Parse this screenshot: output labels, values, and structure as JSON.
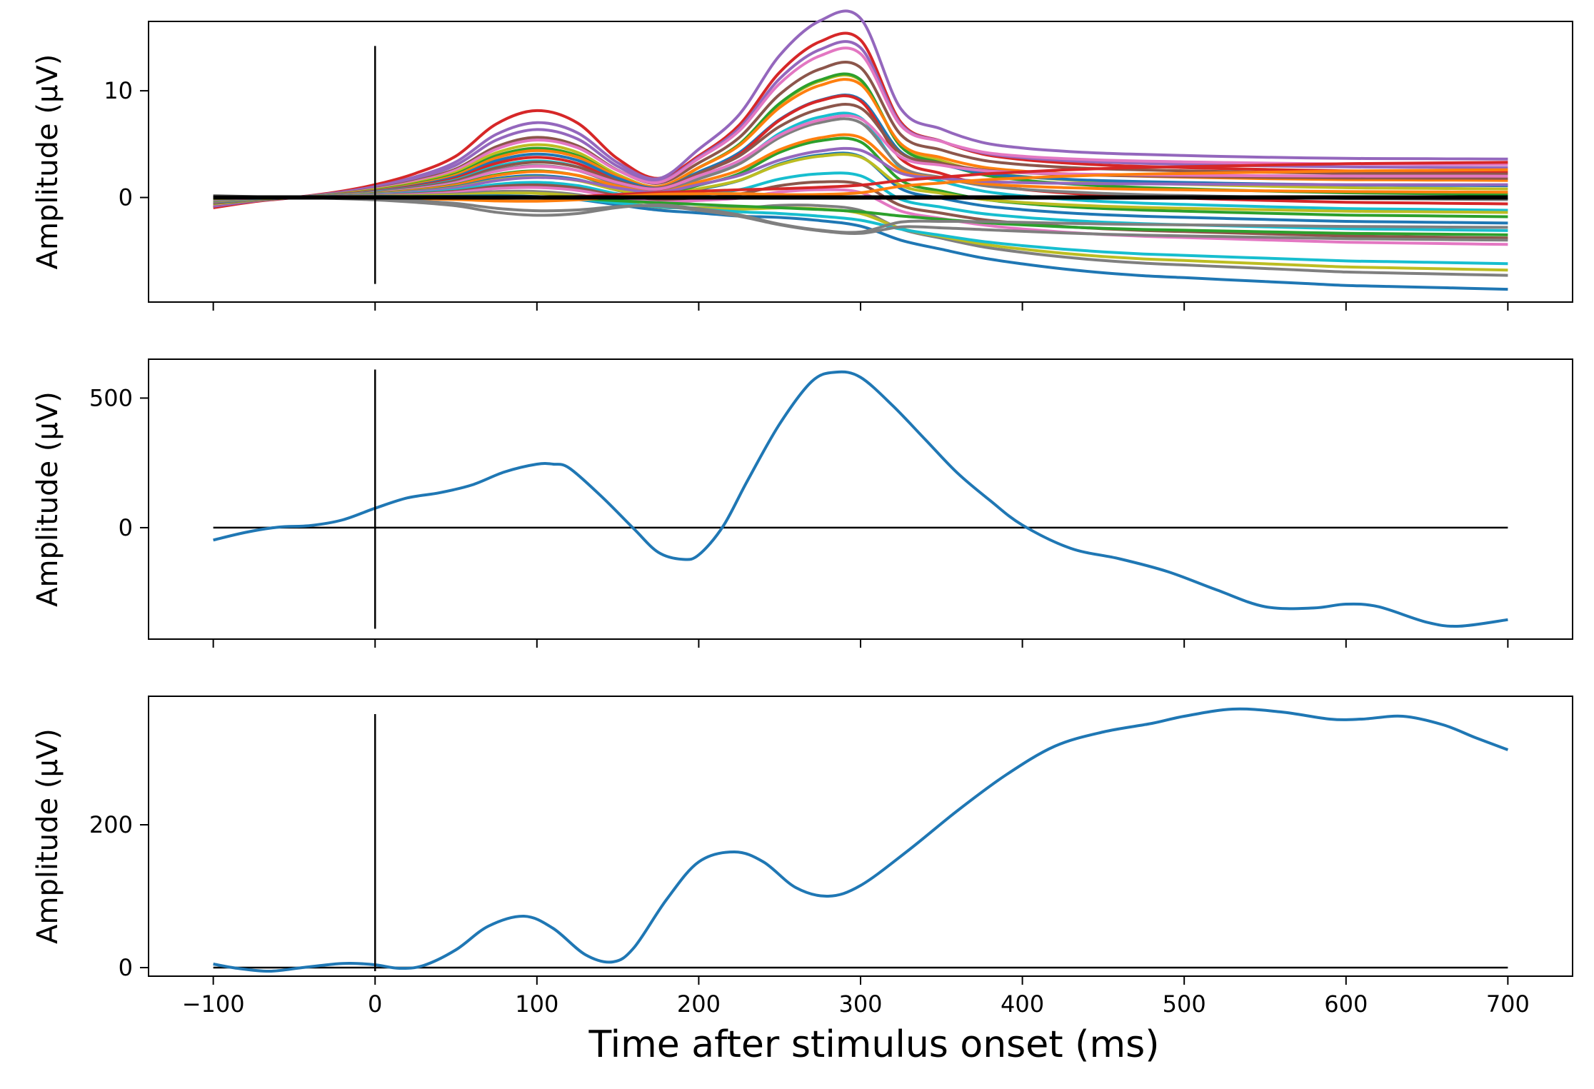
{
  "figure": {
    "xlabel": "Time after stimulus onset (ms)"
  },
  "chart_data": [
    {
      "type": "line",
      "panel": "top",
      "ylabel": "Amplitude (μV)",
      "xlim": [
        -140,
        740
      ],
      "ylim": [
        -9.8,
        16.5
      ],
      "xticks": [
        -100,
        0,
        100,
        200,
        300,
        400,
        500,
        600,
        700
      ],
      "xticklabels": [],
      "yticks": [
        0,
        10
      ],
      "yticklabels": [
        "0",
        "10"
      ],
      "stimulus_marker": {
        "x": 0,
        "y_from": -8.1,
        "y_to": 14.2
      },
      "zero_line": true,
      "series_profile": {
        "x": [
          -100,
          -75,
          -50,
          -25,
          0,
          25,
          50,
          75,
          100,
          125,
          150,
          175,
          200,
          225,
          250,
          275,
          300,
          325,
          350,
          375,
          400,
          425,
          450,
          475,
          500,
          525,
          550,
          575,
          600,
          625,
          650,
          675,
          700
        ],
        "early": [
          -0.12,
          -0.05,
          0.0,
          0.06,
          0.15,
          0.28,
          0.48,
          0.85,
          1.0,
          0.85,
          0.42,
          0.18,
          0.25,
          0.45,
          0.8,
          1.0,
          1.0,
          0.88,
          0.7,
          0.56,
          0.5,
          0.47,
          0.45,
          0.44,
          0.42,
          0.4,
          0.38,
          0.36,
          0.34,
          0.33,
          0.33,
          0.34,
          0.35
        ],
        "late": [
          0.0,
          0.0,
          0.0,
          0.0,
          0.0,
          0.01,
          0.02,
          0.04,
          0.06,
          0.08,
          0.11,
          0.15,
          0.2,
          0.26,
          0.32,
          0.38,
          0.44,
          0.52,
          0.6,
          0.68,
          0.74,
          0.79,
          0.83,
          0.86,
          0.88,
          0.9,
          0.92,
          0.94,
          0.96,
          0.97,
          0.98,
          0.99,
          1.0
        ]
      },
      "series": [
        {
          "color": "#d62728",
          "p1": 8.0,
          "p2": 13.7,
          "tail": 2.4
        },
        {
          "color": "#9467bd",
          "p1": 6.8,
          "p2": 15.2,
          "tail": 3.6
        },
        {
          "color": "#9467bd",
          "p1": 6.2,
          "p2": 12.8,
          "tail": 2.8
        },
        {
          "color": "#8c564b",
          "p1": 5.5,
          "p2": 11.2,
          "tail": 2.2
        },
        {
          "color": "#e377c2",
          "p1": 5.2,
          "p2": 12.1,
          "tail": 3.1
        },
        {
          "color": "#bcbd22",
          "p1": 4.9,
          "p2": 10.6,
          "tail": 0.8
        },
        {
          "color": "#2ca02c",
          "p1": 4.6,
          "p2": 10.9,
          "tail": 0.3
        },
        {
          "color": "#ff7f0e",
          "p1": 4.3,
          "p2": 9.9,
          "tail": 1.6
        },
        {
          "color": "#1f77b4",
          "p1": 4.0,
          "p2": 8.7,
          "tail": 1.1
        },
        {
          "color": "#d62728",
          "p1": 3.8,
          "p2": 9.3,
          "tail": -0.6
        },
        {
          "color": "#17becf",
          "p1": 3.5,
          "p2": 8.0,
          "tail": -1.2
        },
        {
          "color": "#8c564b",
          "p1": 3.2,
          "p2": 7.6,
          "tail": 1.8
        },
        {
          "color": "#7f7f7f",
          "p1": 3.0,
          "p2": 7.1,
          "tail": -0.2
        },
        {
          "color": "#e377c2",
          "p1": 2.8,
          "p2": 6.5,
          "tail": 2.0
        },
        {
          "color": "#2ca02c",
          "p1": 2.6,
          "p2": 6.0,
          "tail": -1.8
        },
        {
          "color": "#ff7f0e",
          "p1": 2.4,
          "p2": 5.4,
          "tail": 0.5
        },
        {
          "color": "#1f77b4",
          "p1": 2.2,
          "p2": 4.9,
          "tail": -2.4
        },
        {
          "color": "#bcbd22",
          "p1": 2.0,
          "p2": 4.4,
          "tail": -1.4
        },
        {
          "color": "#9467bd",
          "p1": 1.8,
          "p2": 3.9,
          "tail": 1.2
        },
        {
          "color": "#17becf",
          "p1": 1.6,
          "p2": 3.4,
          "tail": -3.1
        },
        {
          "color": "#8c564b",
          "p1": 1.4,
          "p2": 2.9,
          "tail": -3.8
        },
        {
          "color": "#e377c2",
          "p1": 1.2,
          "p2": 2.4,
          "tail": -4.4
        },
        {
          "color": "#7f7f7f",
          "p1": 1.0,
          "p2": 2.0,
          "tail": -7.3
        },
        {
          "color": "#bcbd22",
          "p1": 0.8,
          "p2": 1.5,
          "tail": -6.8
        },
        {
          "color": "#1f77b4",
          "p1": 0.6,
          "p2": 1.1,
          "tail": -8.6
        },
        {
          "color": "#17becf",
          "p1": 0.4,
          "p2": 0.6,
          "tail": -6.2
        },
        {
          "color": "#2ca02c",
          "p1": 0.2,
          "p2": 0.2,
          "tail": -3.5
        },
        {
          "color": "#d62728",
          "p1": -0.2,
          "p2": -0.3,
          "tail": 3.3
        },
        {
          "color": "#ff7f0e",
          "p1": -0.5,
          "p2": -0.7,
          "tail": 2.6
        },
        {
          "color": "#7f7f7f",
          "p1": -1.0,
          "p2": -1.6,
          "tail": -4.0
        },
        {
          "color": "#7f7f7f",
          "p1": -1.5,
          "p2": -2.0,
          "tail": -2.8
        }
      ],
      "mean_line": {
        "color": "#000000",
        "value": 0.0
      }
    },
    {
      "type": "line",
      "panel": "middle",
      "ylabel": "Amplitude (μV)",
      "xlim": [
        -140,
        740
      ],
      "ylim": [
        -430,
        650
      ],
      "xticks": [
        -100,
        0,
        100,
        200,
        300,
        400,
        500,
        600,
        700
      ],
      "xticklabels": [],
      "yticks": [
        0,
        500
      ],
      "yticklabels": [
        "0",
        "500"
      ],
      "stimulus_marker": {
        "x": 0,
        "y_from": -390,
        "y_to": 610
      },
      "zero_line": true,
      "series": [
        {
          "color": "#1f77b4",
          "x": [
            -100,
            -80,
            -60,
            -40,
            -20,
            0,
            20,
            40,
            60,
            80,
            100,
            110,
            120,
            140,
            160,
            175,
            190,
            200,
            215,
            230,
            250,
            270,
            285,
            300,
            320,
            340,
            360,
            380,
            400,
            430,
            460,
            490,
            520,
            550,
            580,
            600,
            620,
            650,
            670,
            700
          ],
          "y": [
            -48,
            -18,
            2,
            8,
            30,
            75,
            115,
            135,
            165,
            215,
            245,
            245,
            230,
            120,
            -5,
            -95,
            -122,
            -105,
            5,
            180,
            400,
            565,
            600,
            580,
            470,
            340,
            210,
            105,
            10,
            -80,
            -120,
            -170,
            -240,
            -305,
            -310,
            -295,
            -305,
            -365,
            -380,
            -355
          ]
        }
      ]
    },
    {
      "type": "line",
      "panel": "bottom",
      "ylabel": "Amplitude (μV)",
      "xlabel": "Time after stimulus onset (ms)",
      "xlim": [
        -140,
        740
      ],
      "ylim": [
        -12,
        380
      ],
      "xticks": [
        -100,
        0,
        100,
        200,
        300,
        400,
        500,
        600,
        700
      ],
      "xticklabels": [
        "−100",
        "0",
        "100",
        "200",
        "300",
        "400",
        "500",
        "600",
        "700"
      ],
      "yticks": [
        0,
        200
      ],
      "yticklabels": [
        "0",
        "200"
      ],
      "stimulus_marker": {
        "x": 0,
        "y_from": -5,
        "y_to": 355
      },
      "zero_line": true,
      "series": [
        {
          "color": "#1f77b4",
          "x": [
            -100,
            -85,
            -65,
            -45,
            -25,
            -15,
            0,
            15,
            30,
            50,
            70,
            92,
            110,
            130,
            147,
            160,
            180,
            200,
            222,
            240,
            260,
            280,
            300,
            330,
            360,
            390,
            420,
            450,
            480,
            500,
            530,
            560,
            590,
            610,
            635,
            660,
            680,
            700
          ],
          "y": [
            5,
            -1,
            -5,
            0,
            5,
            6,
            4,
            -1,
            3,
            25,
            58,
            72,
            55,
            18,
            8,
            28,
            95,
            148,
            162,
            148,
            112,
            100,
            115,
            165,
            220,
            270,
            310,
            330,
            342,
            352,
            362,
            358,
            348,
            348,
            352,
            340,
            322,
            305
          ]
        }
      ]
    }
  ]
}
